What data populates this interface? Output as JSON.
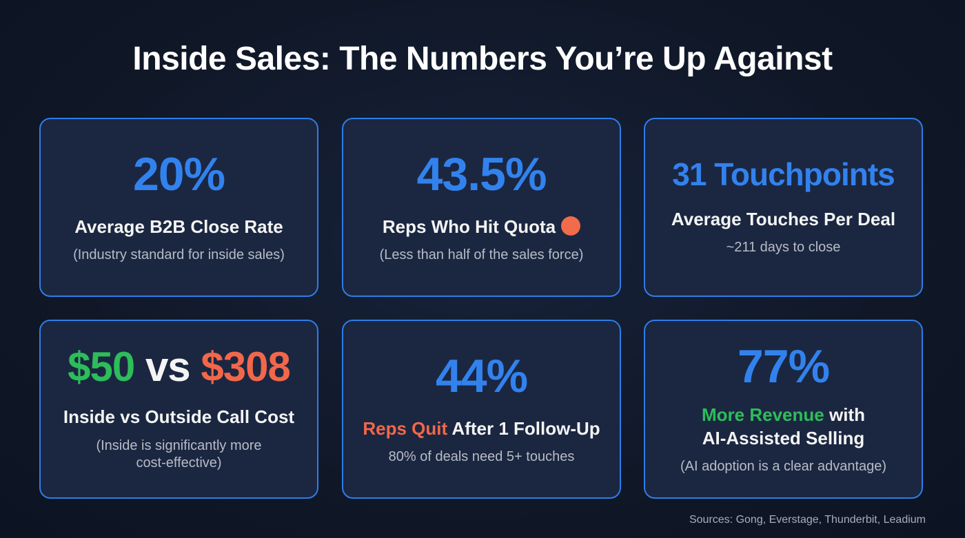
{
  "title": "Inside Sales: The Numbers You’re Up Against",
  "cards": [
    {
      "stat": "20%",
      "heading": "Average B2B Close Rate",
      "sub": "(Industry standard for inside sales)"
    },
    {
      "stat": "43.5%",
      "heading": "Reps Who Hit Quota",
      "sub": "(Less than half of the sales force)",
      "indicator_color": "#f26b4a"
    },
    {
      "stat": "31 Touchpoints",
      "heading": "Average Touches Per Deal",
      "sub": "~211 days to close"
    },
    {
      "stat_a": "$50",
      "stat_vs": "vs",
      "stat_b": "$308",
      "heading": "Inside vs Outside Call Cost",
      "sub_line1": "(Inside is significantly more",
      "sub_line2": "cost-effective)"
    },
    {
      "stat": "44%",
      "heading_highlight": "Reps Quit",
      "heading_rest": "After 1 Follow-Up",
      "sub": "80% of deals need 5+ touches"
    },
    {
      "stat": "77%",
      "heading_highlight": "More Revenue",
      "heading_rest": "with",
      "heading_line2": "AI-Assisted Selling",
      "sub": "(AI adoption is a clear advantage)"
    }
  ],
  "sources": "Sources: Gong, Everstage, Thunderbit, Leadium",
  "colors": {
    "blue": "#3282ee",
    "green": "#2dbd5a",
    "orange": "#f2674a",
    "border": "#2f7de8"
  }
}
